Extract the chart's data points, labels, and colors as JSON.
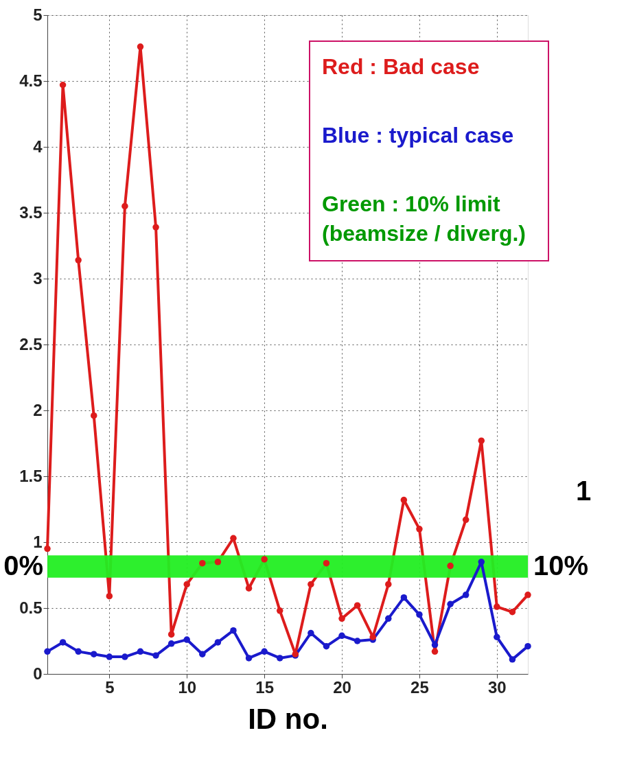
{
  "chart_data": {
    "type": "line",
    "xlabel": "ID no.",
    "x": [
      1,
      2,
      3,
      4,
      5,
      6,
      7,
      8,
      9,
      10,
      11,
      12,
      13,
      14,
      15,
      16,
      17,
      18,
      19,
      20,
      21,
      22,
      23,
      24,
      25,
      26,
      27,
      28,
      29,
      30,
      31,
      32
    ],
    "series": [
      {
        "name": "Red : Bad case",
        "color": "#dd1c1c",
        "values": [
          0.95,
          4.47,
          3.14,
          1.96,
          0.59,
          3.55,
          4.76,
          3.39,
          0.3,
          0.68,
          0.84,
          0.85,
          1.03,
          0.65,
          0.87,
          0.48,
          0.15,
          0.68,
          0.84,
          0.42,
          0.52,
          0.28,
          0.68,
          1.32,
          1.1,
          0.17,
          0.82,
          1.17,
          1.77,
          0.51,
          0.47,
          0.6
        ]
      },
      {
        "name": "Blue : typical case",
        "color": "#1a1acc",
        "values": [
          0.17,
          0.24,
          0.17,
          0.15,
          0.13,
          0.13,
          0.17,
          0.14,
          0.23,
          0.26,
          0.15,
          0.24,
          0.33,
          0.12,
          0.17,
          0.12,
          0.14,
          0.31,
          0.21,
          0.29,
          0.25,
          0.26,
          0.42,
          0.58,
          0.45,
          0.22,
          0.53,
          0.6,
          0.85,
          0.28,
          0.11,
          0.21
        ]
      }
    ],
    "bands": [
      {
        "axis": "y",
        "from": 0.73,
        "to": 0.9,
        "label": "10%",
        "color": "#22ee22"
      }
    ],
    "annotations": [
      "Green : 10% limit",
      "(beamsize / diverg.)",
      "0%",
      "1"
    ],
    "xlim": [
      1,
      32
    ],
    "xticks": [
      5,
      10,
      15,
      20,
      25,
      30
    ],
    "ylim": [
      0,
      5
    ],
    "yticks": [
      0,
      0.5,
      1,
      1.5,
      2,
      2.5,
      3,
      3.5,
      4,
      4.5,
      5
    ],
    "grid": true,
    "legend": "top right",
    "marker": "circle",
    "line_style": "solid"
  }
}
